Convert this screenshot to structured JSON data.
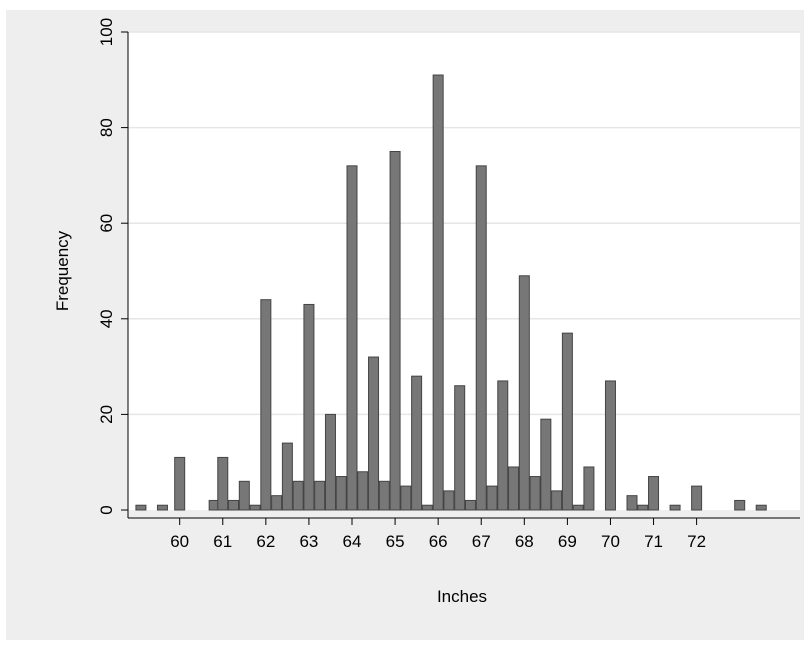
{
  "chart_data": {
    "type": "bar",
    "title": "",
    "xlabel": "Inches",
    "ylabel": "Frequency",
    "ylim": [
      0,
      100
    ],
    "xlim": [
      58.8,
      74.4
    ],
    "yticks": [
      0,
      20,
      40,
      60,
      80,
      100
    ],
    "xticks": [
      60,
      61,
      62,
      63,
      64,
      65,
      66,
      67,
      68,
      69,
      70,
      71,
      72
    ],
    "grid": "horizontal",
    "bar_color": "#777777",
    "bar_edge_color": "#444444",
    "points": [
      {
        "x": 59.1,
        "y": 1
      },
      {
        "x": 59.6,
        "y": 1
      },
      {
        "x": 60.0,
        "y": 11
      },
      {
        "x": 60.8,
        "y": 2
      },
      {
        "x": 61.0,
        "y": 11
      },
      {
        "x": 61.25,
        "y": 2
      },
      {
        "x": 61.5,
        "y": 6
      },
      {
        "x": 61.75,
        "y": 1
      },
      {
        "x": 62.0,
        "y": 44
      },
      {
        "x": 62.25,
        "y": 3
      },
      {
        "x": 62.5,
        "y": 14
      },
      {
        "x": 62.75,
        "y": 6
      },
      {
        "x": 63.0,
        "y": 43
      },
      {
        "x": 63.25,
        "y": 6
      },
      {
        "x": 63.5,
        "y": 20
      },
      {
        "x": 63.75,
        "y": 7
      },
      {
        "x": 64.0,
        "y": 72
      },
      {
        "x": 64.25,
        "y": 8
      },
      {
        "x": 64.5,
        "y": 32
      },
      {
        "x": 64.75,
        "y": 6
      },
      {
        "x": 65.0,
        "y": 75
      },
      {
        "x": 65.25,
        "y": 5
      },
      {
        "x": 65.5,
        "y": 28
      },
      {
        "x": 65.75,
        "y": 1
      },
      {
        "x": 66.0,
        "y": 91
      },
      {
        "x": 66.25,
        "y": 4
      },
      {
        "x": 66.5,
        "y": 26
      },
      {
        "x": 66.75,
        "y": 2
      },
      {
        "x": 67.0,
        "y": 72
      },
      {
        "x": 67.25,
        "y": 5
      },
      {
        "x": 67.5,
        "y": 27
      },
      {
        "x": 67.75,
        "y": 9
      },
      {
        "x": 68.0,
        "y": 49
      },
      {
        "x": 68.25,
        "y": 7
      },
      {
        "x": 68.5,
        "y": 19
      },
      {
        "x": 68.75,
        "y": 4
      },
      {
        "x": 69.0,
        "y": 37
      },
      {
        "x": 69.25,
        "y": 1
      },
      {
        "x": 69.5,
        "y": 9
      },
      {
        "x": 70.0,
        "y": 27
      },
      {
        "x": 70.5,
        "y": 3
      },
      {
        "x": 70.75,
        "y": 1
      },
      {
        "x": 71.0,
        "y": 7
      },
      {
        "x": 71.5,
        "y": 1
      },
      {
        "x": 72.0,
        "y": 5
      },
      {
        "x": 73.0,
        "y": 2
      },
      {
        "x": 73.5,
        "y": 1
      }
    ]
  }
}
